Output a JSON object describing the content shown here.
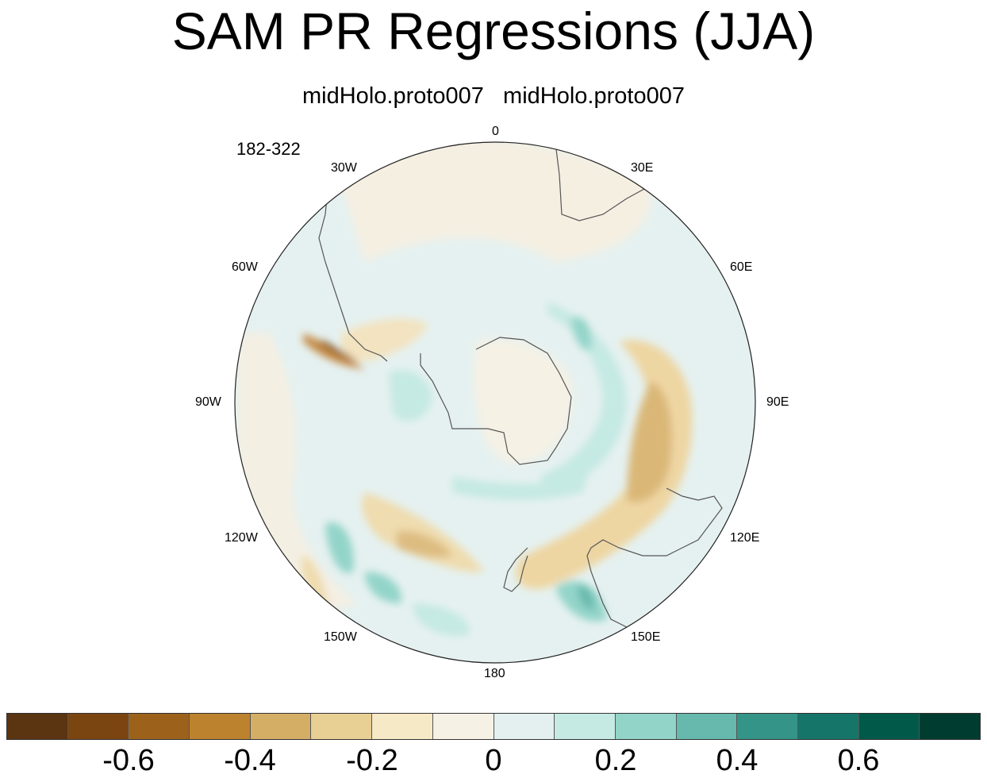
{
  "title": "SAM PR Regressions (JJA)",
  "subtitle": "midHolo.proto007  midHolo.proto007",
  "years": "182-322",
  "longitude_labels": [
    "0",
    "30E",
    "60E",
    "90E",
    "120E",
    "150E",
    "180",
    "150W",
    "120W",
    "90W",
    "60W",
    "30W"
  ],
  "colorbar": {
    "colors": [
      "#5b3412",
      "#7b4511",
      "#9c621c",
      "#bd822e",
      "#d5ae66",
      "#e8cf93",
      "#f5e9c6",
      "#f5f1e5",
      "#e3f0ef",
      "#c5e9e3",
      "#93d4c9",
      "#67b9ad",
      "#359488",
      "#167569",
      "#015949",
      "#003c30"
    ],
    "tick_labels": [
      "-0.6",
      "-0.4",
      "-0.2",
      "0",
      "0.2",
      "0.4",
      "0.6"
    ]
  }
}
